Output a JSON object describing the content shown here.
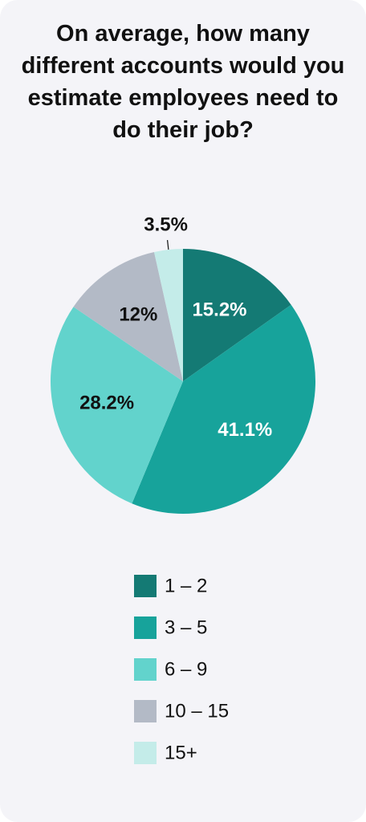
{
  "chart_data": {
    "type": "pie",
    "title": "On average, how many different accounts would you estimate employees need to do their job?",
    "categories": [
      "1 – 2",
      "3 – 5",
      "6 – 9",
      "10 – 15",
      "15+"
    ],
    "values": [
      15.2,
      41.1,
      28.2,
      12,
      3.5
    ],
    "value_labels": [
      "15.2%",
      "41.1%",
      "28.2%",
      "12%",
      "3.5%"
    ],
    "colors": [
      "#147a74",
      "#17a39b",
      "#62d3cc",
      "#b3bac6",
      "#c4ece9"
    ],
    "label_colors": [
      "#ffffff",
      "#ffffff",
      "#111111",
      "#111111",
      "#111111"
    ],
    "legend": "bottom"
  }
}
